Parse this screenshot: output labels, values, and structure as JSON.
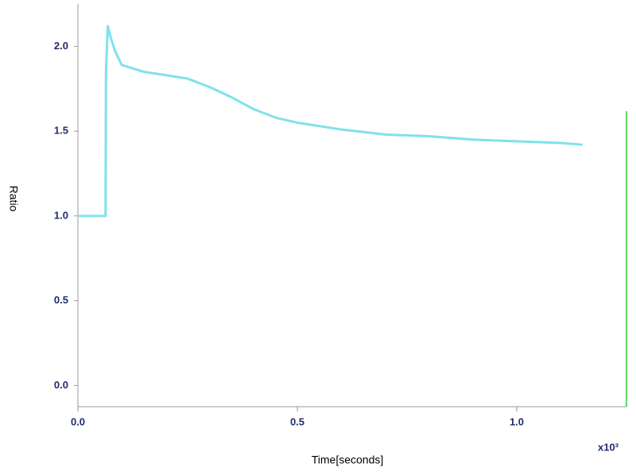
{
  "chart_data": {
    "type": "line",
    "xlabel": "Time[seconds]",
    "ylabel": "Ratio",
    "x_multiplier": "x10³",
    "xlim": [
      0,
      1.25
    ],
    "ylim": [
      -0.125,
      2.25
    ],
    "xticks": [
      {
        "value": 0,
        "label": "0.0"
      },
      0.5,
      {
        "value": 1,
        "label": "1.0"
      }
    ],
    "yticks": [
      {
        "value": 0,
        "label": "0.0"
      },
      0.5,
      {
        "value": 1,
        "label": "1.0"
      },
      1.5,
      {
        "value": 2,
        "label": "2.0"
      }
    ],
    "series": [
      {
        "color": "#7fe2ea",
        "x": [
          0.002,
          0.063,
          0.064,
          0.068,
          0.075,
          0.085,
          0.1,
          0.15,
          0.2,
          0.25,
          0.3,
          0.35,
          0.4,
          0.45,
          0.5,
          0.6,
          0.7,
          0.8,
          0.9,
          1.0,
          1.1,
          1.15
        ],
        "values": [
          1.0,
          1.0,
          1.85,
          2.12,
          2.05,
          1.97,
          1.89,
          1.85,
          1.83,
          1.81,
          1.76,
          1.7,
          1.63,
          1.58,
          1.55,
          1.51,
          1.48,
          1.47,
          1.45,
          1.44,
          1.43,
          1.42
        ]
      }
    ]
  }
}
